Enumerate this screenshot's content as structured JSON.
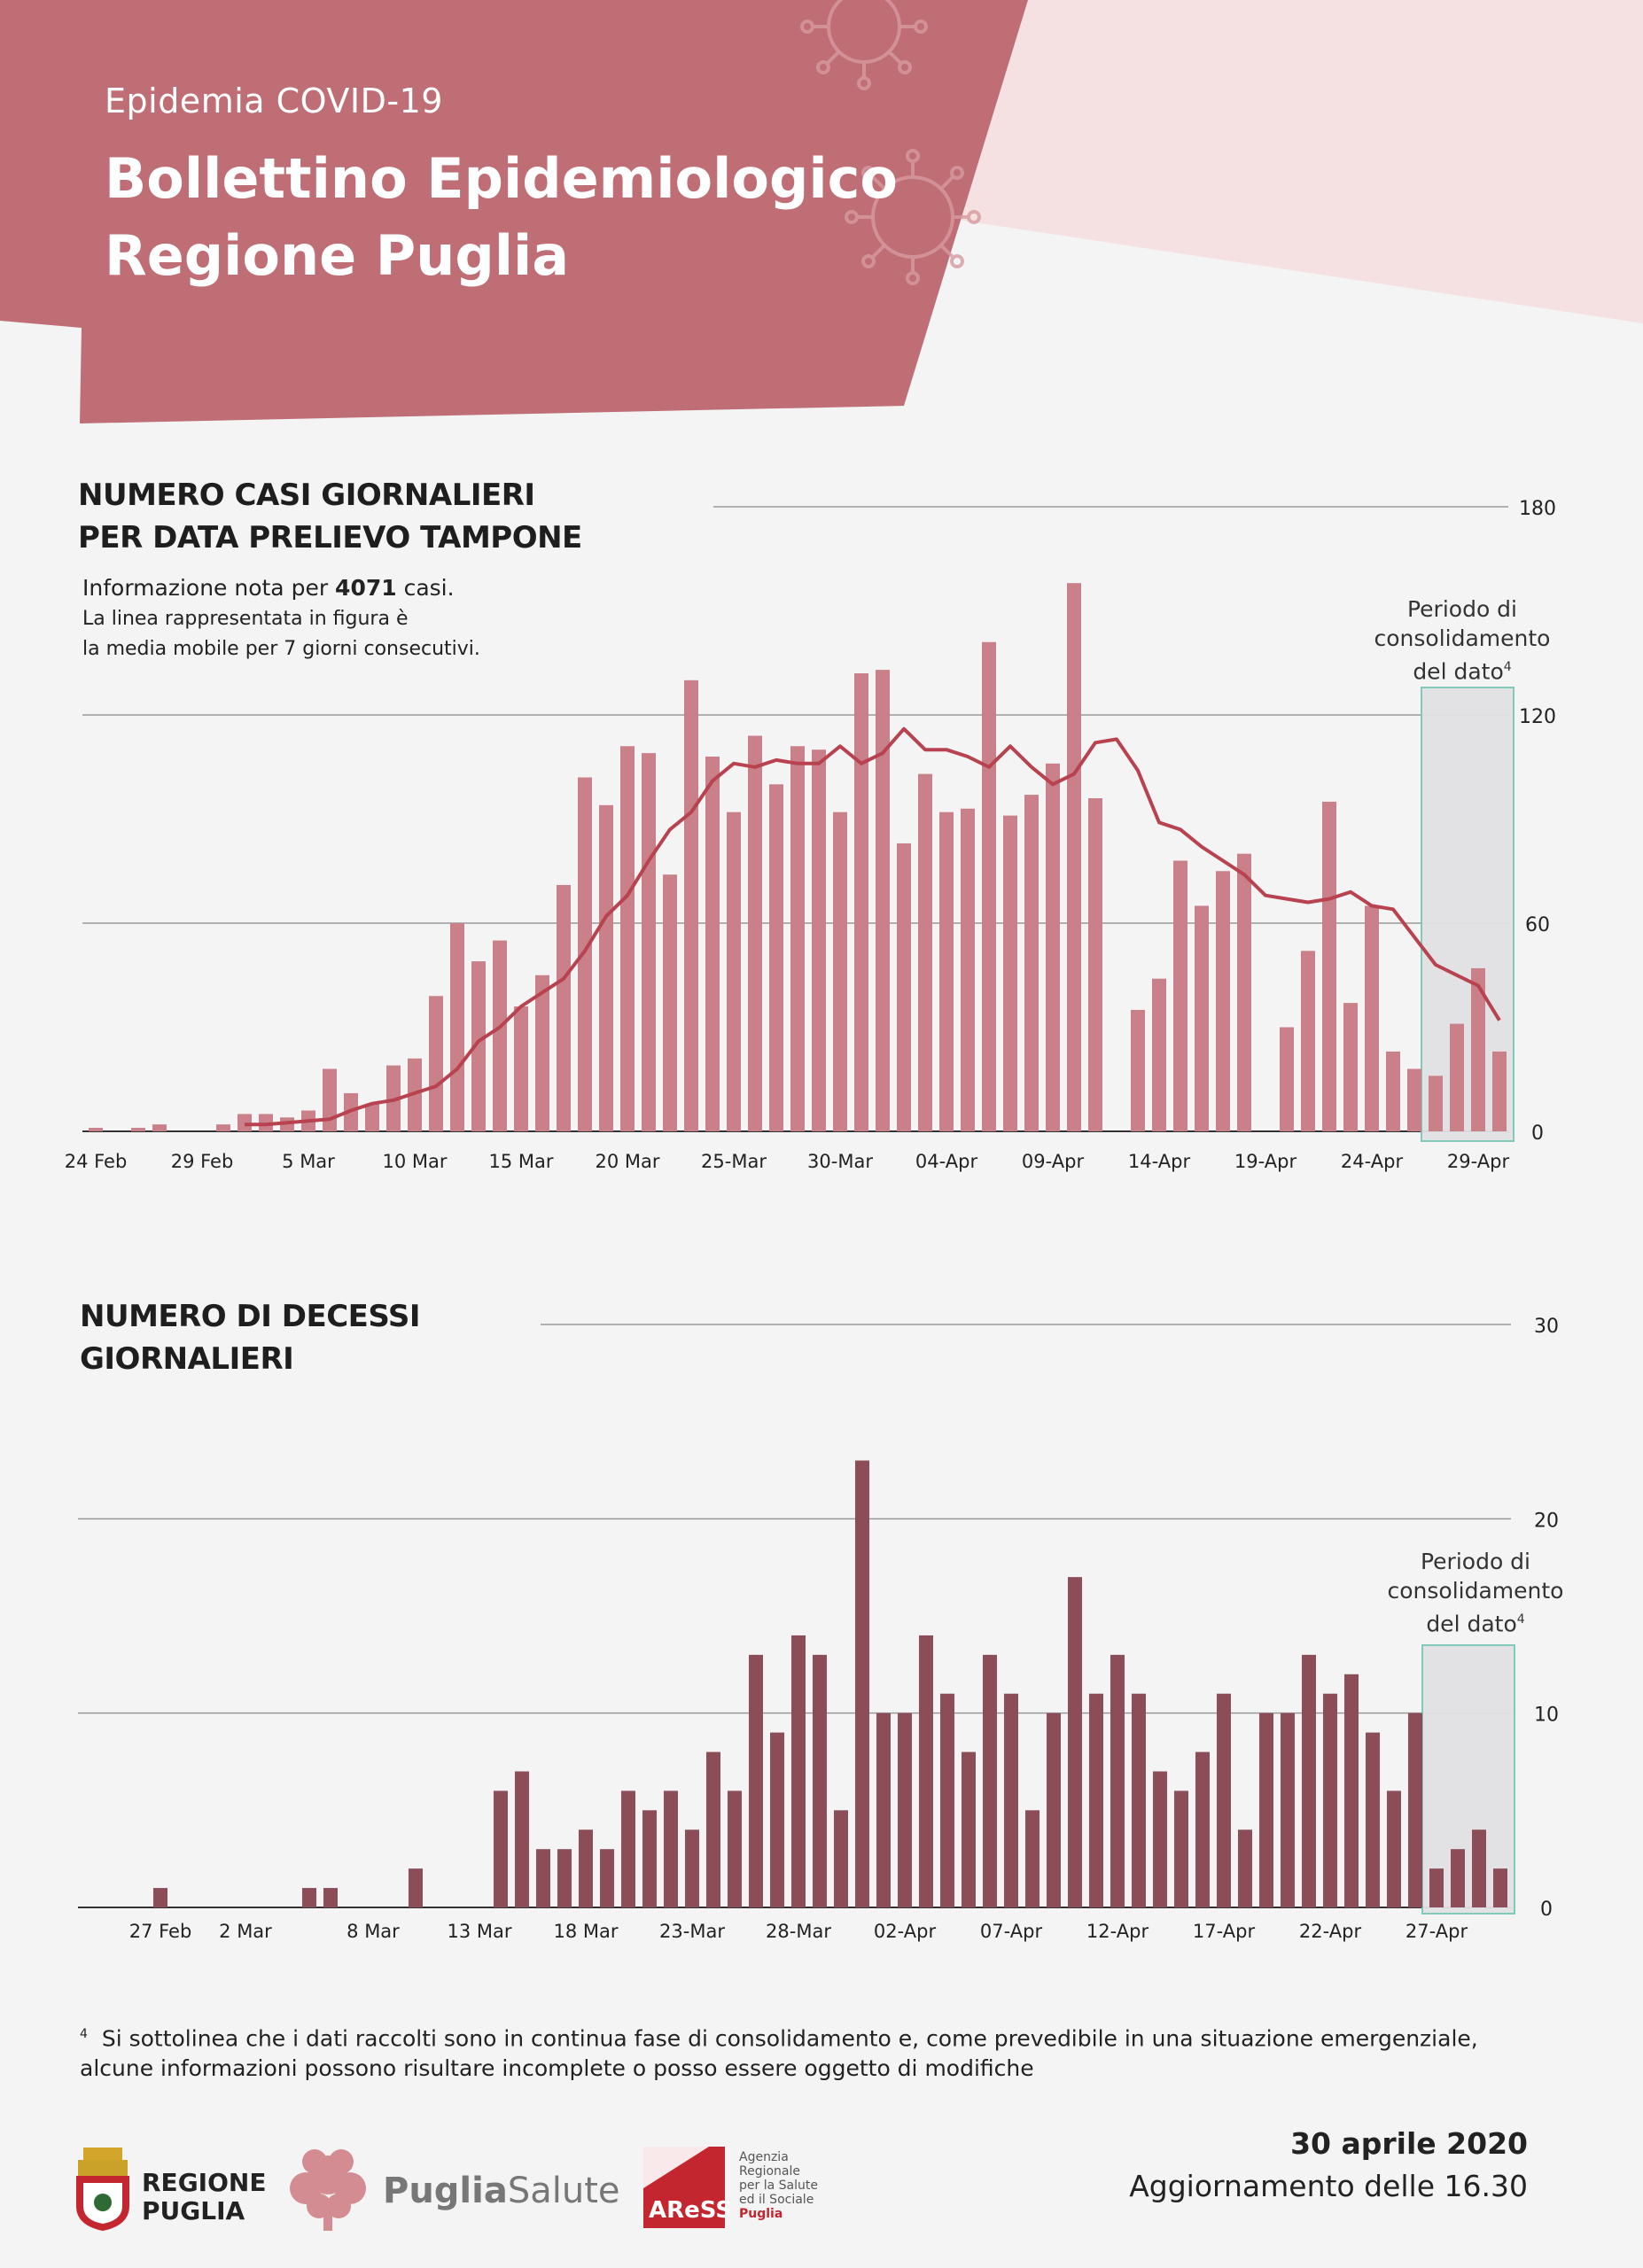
{
  "header": {
    "kicker": "Epidemia COVID-19",
    "title_line1": "Bollettino Epidemiologico",
    "title_line2": "Regione Puglia"
  },
  "colors": {
    "header_red": "#bf6e75",
    "pink_band": "#f5e1e1",
    "cases_bar": "#c98089",
    "moving_avg": "#b8424f",
    "deaths_bar": "#8c4d58",
    "consolidation_border": "#7bc8b8",
    "consolidation_fill": "#e2e2e4"
  },
  "chart_data": [
    {
      "type": "bar",
      "title_line1": "NUMERO CASI GIORNALIERI",
      "title_line2": "PER DATA PRELIEVO TAMPONE",
      "note_prefix": "Informazione nota per ",
      "note_count": "4071",
      "note_suffix": "  casi.",
      "note_line2": "La linea rappresentata in figura è",
      "note_line3": "la media mobile per 7 giorni consecutivi.",
      "ylim": [
        0,
        180
      ],
      "yticks": [
        "0",
        "60",
        "120",
        "180"
      ],
      "x_tick_labels": [
        "24 Feb",
        "29 Feb",
        "5 Mar",
        "10 Mar",
        "15 Mar",
        "20 Mar",
        "25-Mar",
        "30-Mar",
        "04-Apr",
        "09-Apr",
        "14-Apr",
        "19-Apr",
        "24-Apr",
        "29-Apr"
      ],
      "categories": [
        "24 Feb",
        "25 Feb",
        "26 Feb",
        "27 Feb",
        "28 Feb",
        "29 Feb",
        "1 Mar",
        "2 Mar",
        "3 Mar",
        "4 Mar",
        "5 Mar",
        "6 Mar",
        "7 Mar",
        "8 Mar",
        "9 Mar",
        "10 Mar",
        "11 Mar",
        "12 Mar",
        "13 Mar",
        "14 Mar",
        "15 Mar",
        "16 Mar",
        "17 Mar",
        "18 Mar",
        "19 Mar",
        "20 Mar",
        "21 Mar",
        "22 Mar",
        "23 Mar",
        "24 Mar",
        "25 Mar",
        "26 Mar",
        "27 Mar",
        "28 Mar",
        "29 Mar",
        "30 Mar",
        "31 Mar",
        "1 Apr",
        "2 Apr",
        "3 Apr",
        "4 Apr",
        "5 Apr",
        "6 Apr",
        "7 Apr",
        "8 Apr",
        "9 Apr",
        "10 Apr",
        "11 Apr",
        "12 Apr",
        "13 Apr",
        "14 Apr",
        "15 Apr",
        "16 Apr",
        "17 Apr",
        "18 Apr",
        "19 Apr",
        "20 Apr",
        "21 Apr",
        "22 Apr",
        "23 Apr",
        "24 Apr",
        "25 Apr",
        "26 Apr",
        "27 Apr",
        "28 Apr",
        "29 Apr",
        "30 Apr"
      ],
      "series": [
        {
          "values": [
            1,
            0,
            1,
            2,
            0,
            0,
            2,
            5,
            5,
            4,
            6,
            18,
            11,
            8,
            19,
            21,
            39,
            60,
            49,
            55,
            36,
            45,
            71,
            102,
            94,
            111,
            109,
            74,
            130,
            108,
            92,
            114,
            100,
            111,
            110,
            92,
            132,
            133,
            83,
            103,
            92,
            93,
            141,
            91,
            97,
            106,
            158,
            96,
            0,
            35,
            44,
            78,
            65,
            75,
            80,
            0,
            30,
            52,
            95,
            37,
            65,
            23,
            18,
            16,
            31,
            47,
            23
          ]
        },
        {
          "type": "line",
          "values": [
            null,
            null,
            null,
            null,
            null,
            null,
            null,
            2,
            2,
            2.5,
            3,
            3.5,
            6,
            8,
            9,
            11,
            13,
            18,
            26,
            30,
            36,
            40,
            44,
            52,
            62,
            68,
            78,
            87,
            92,
            101,
            106,
            105,
            107,
            106,
            106,
            111,
            106,
            109,
            116,
            110,
            110,
            108,
            105,
            111,
            105,
            100,
            103,
            112,
            113,
            104,
            89,
            87,
            82,
            78,
            74,
            68,
            67,
            66,
            67,
            69,
            65,
            64,
            56,
            48,
            45,
            42,
            32
          ]
        }
      ],
      "consolidation_label_line1": "Periodo di",
      "consolidation_label_line2": "consolidamento",
      "consolidation_label_line3": "del dato",
      "consolidation_note_ref": "4",
      "consolidation_range": [
        "27 Apr",
        "30 Apr"
      ]
    },
    {
      "type": "bar",
      "title_line1": "NUMERO DI DECESSI",
      "title_line2": "GIORNALIERI",
      "ylim": [
        0,
        30
      ],
      "yticks": [
        "0",
        "10",
        "20",
        "30"
      ],
      "x_tick_labels": [
        "27 Feb",
        "2 Mar",
        "8 Mar",
        "13 Mar",
        "18 Mar",
        "23-Mar",
        "28-Mar",
        "02-Apr",
        "07-Apr",
        "12-Apr",
        "17-Apr",
        "22-Apr",
        "27-Apr"
      ],
      "categories": [
        "24 Feb",
        "25 Feb",
        "26 Feb",
        "27 Feb",
        "28 Feb",
        "29 Feb",
        "1 Mar",
        "2 Mar",
        "3 Mar",
        "4 Mar",
        "5 Mar",
        "6 Mar",
        "7 Mar",
        "8 Mar",
        "9 Mar",
        "10 Mar",
        "11 Mar",
        "12 Mar",
        "13 Mar",
        "14 Mar",
        "15 Mar",
        "16 Mar",
        "17 Mar",
        "18 Mar",
        "19 Mar",
        "20 Mar",
        "21 Mar",
        "22 Mar",
        "23 Mar",
        "24 Mar",
        "25 Mar",
        "26 Mar",
        "27 Mar",
        "28 Mar",
        "29 Mar",
        "30 Mar",
        "31 Mar",
        "1 Apr",
        "2 Apr",
        "3 Apr",
        "4 Apr",
        "5 Apr",
        "6 Apr",
        "7 Apr",
        "8 Apr",
        "9 Apr",
        "10 Apr",
        "11 Apr",
        "12 Apr",
        "13 Apr",
        "14 Apr",
        "15 Apr",
        "16 Apr",
        "17 Apr",
        "18 Apr",
        "19 Apr",
        "20 Apr",
        "21 Apr",
        "22 Apr",
        "23 Apr",
        "24 Apr",
        "25 Apr",
        "26 Apr",
        "27 Apr",
        "28 Apr",
        "29 Apr",
        "30 Apr"
      ],
      "series": [
        {
          "values": [
            0,
            0,
            0,
            1,
            0,
            0,
            0,
            0,
            0,
            0,
            1,
            1,
            0,
            0,
            0,
            2,
            0,
            0,
            0,
            6,
            7,
            3,
            3,
            4,
            3,
            6,
            5,
            6,
            4,
            8,
            6,
            13,
            9,
            14,
            13,
            5,
            23,
            10,
            10,
            14,
            11,
            8,
            13,
            11,
            5,
            10,
            17,
            11,
            13,
            11,
            7,
            6,
            8,
            11,
            4,
            10,
            10,
            13,
            11,
            12,
            9,
            6,
            10,
            2,
            3,
            4,
            2
          ]
        }
      ],
      "consolidation_label_line1": "Periodo di",
      "consolidation_label_line2": "consolidamento",
      "consolidation_label_line3": "del dato",
      "consolidation_note_ref": "4",
      "consolidation_range": [
        "27 Apr",
        "30 Apr"
      ]
    }
  ],
  "footnote": {
    "ref": "4",
    "line1": "Si sottolinea che i dati raccolti sono in continua fase di consolidamento e, come prevedibile in una situazione emergenziale,",
    "line2": "alcune informazioni possono risultare incomplete o posso essere oggetto di modifiche"
  },
  "logos": {
    "regione_line1": "REGIONE",
    "regione_line2": "PUGLIA",
    "puglia": "Puglia",
    "salute": "Salute",
    "aress_mark": "AReSS",
    "aress_text1": "Agenzia",
    "aress_text2": "Regionale",
    "aress_text3": "per la Salute",
    "aress_text4": "ed il Sociale",
    "aress_text5": "Puglia"
  },
  "footer": {
    "date": "30 aprile 2020",
    "update": "Aggiornamento delle 16.30"
  }
}
